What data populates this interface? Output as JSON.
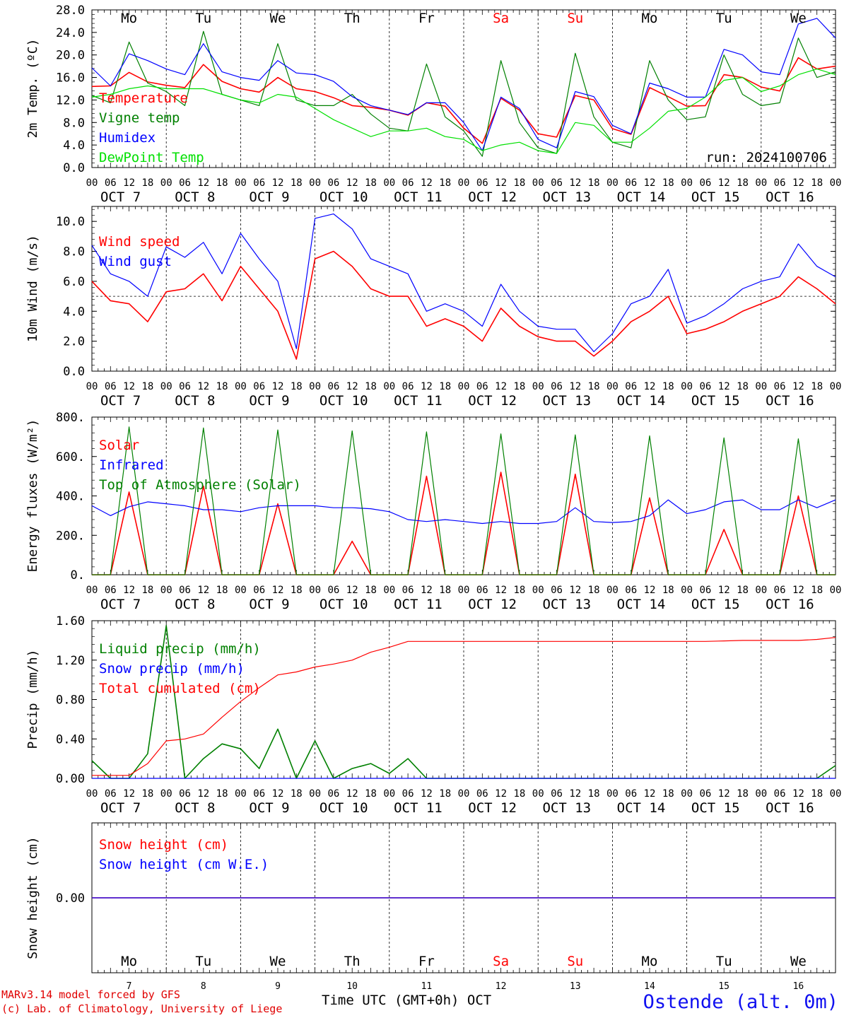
{
  "chart_data": [
    {
      "type": "line",
      "id": "temp",
      "ylabel": "2m Temp. (ºC)",
      "ylim": [
        0,
        28
      ],
      "yticks": [
        "0.0",
        "4.0",
        "8.0",
        "12.0",
        "16.0",
        "20.0",
        "24.0",
        "28.0"
      ],
      "top_day_labels": [
        "Mo",
        "Tu",
        "We",
        "Th",
        "Fr",
        "Sa",
        "Su",
        "Mo",
        "Tu",
        "We"
      ],
      "run_label": "run: 2024100706",
      "x_hours": [
        0,
        6,
        12,
        18,
        24,
        30,
        36,
        42,
        48,
        54,
        60,
        66,
        72,
        78,
        84,
        90,
        96,
        102,
        108,
        114,
        120,
        126,
        132,
        138,
        144,
        150,
        156,
        162,
        168,
        174,
        180,
        186,
        192,
        198,
        204,
        210,
        216,
        222,
        228,
        234,
        240
      ],
      "series": [
        {
          "name": "Temperature",
          "color": "#ff0000",
          "values": [
            14.4,
            14.5,
            16.9,
            15.2,
            14.6,
            14.2,
            18.3,
            15.3,
            14.0,
            13.4,
            16.0,
            14.0,
            13.5,
            12.4,
            11.0,
            10.7,
            10.2,
            9.3,
            11.5,
            10.9,
            7.0,
            4.3,
            12.3,
            10.2,
            6.0,
            5.4,
            12.8,
            12.0,
            6.9,
            5.9,
            14.2,
            12.6,
            10.9,
            11.0,
            16.5,
            16.0,
            14.3,
            13.6,
            19.5,
            17.5,
            18.0
          ]
        },
        {
          "name": "Vigne temp",
          "color": "#008000",
          "values": [
            12.8,
            11.5,
            22.3,
            15.0,
            13.5,
            11.0,
            24.2,
            13.0,
            12.0,
            11.0,
            22.0,
            12.0,
            11.0,
            11.0,
            13.0,
            9.5,
            7.0,
            6.5,
            18.4,
            9.0,
            6.5,
            2.0,
            19.0,
            8.0,
            3.5,
            2.5,
            20.3,
            9.0,
            4.5,
            3.5,
            19.0,
            12.0,
            8.5,
            9.0,
            20.0,
            13.0,
            11.0,
            11.5,
            23.0,
            16.0,
            17.0
          ]
        },
        {
          "name": "Humidex",
          "color": "#0000ff",
          "values": [
            17.7,
            14.5,
            20.2,
            19.0,
            17.5,
            16.5,
            22.0,
            17.0,
            16.0,
            15.5,
            19.0,
            16.8,
            16.5,
            15.3,
            12.6,
            11.0,
            10.2,
            9.4,
            11.5,
            11.5,
            8.0,
            3.0,
            12.5,
            10.5,
            5.0,
            3.5,
            13.5,
            12.6,
            7.5,
            6.0,
            15.0,
            14.0,
            12.5,
            12.5,
            21.0,
            20.0,
            17.0,
            16.5,
            25.5,
            26.5,
            23.0
          ]
        },
        {
          "name": "DewPoint Temp",
          "color": "#00e000",
          "values": [
            12.5,
            13.0,
            14.0,
            14.5,
            14.0,
            14.0,
            14.0,
            13.0,
            12.0,
            11.5,
            13.0,
            12.5,
            10.5,
            8.5,
            7.0,
            5.5,
            6.5,
            6.5,
            7.0,
            5.5,
            5.0,
            3.0,
            4.0,
            4.5,
            3.0,
            2.5,
            8.0,
            7.5,
            4.5,
            4.5,
            7.0,
            10.0,
            10.5,
            12.5,
            15.5,
            16.0,
            13.5,
            14.5,
            16.5,
            17.5,
            16.5
          ]
        }
      ]
    },
    {
      "type": "line",
      "id": "wind",
      "ylabel": "10m Wind (m/s)",
      "ylim": [
        0,
        11
      ],
      "yticks": [
        "0.0",
        "2.0",
        "4.0",
        "6.0",
        "8.0",
        "10.0"
      ],
      "reference_line": 5,
      "x_hours": [
        0,
        6,
        12,
        18,
        24,
        30,
        36,
        42,
        48,
        54,
        60,
        66,
        72,
        78,
        84,
        90,
        96,
        102,
        108,
        114,
        120,
        126,
        132,
        138,
        144,
        150,
        156,
        162,
        168,
        174,
        180,
        186,
        192,
        198,
        204,
        210,
        216,
        222,
        228,
        234,
        240
      ],
      "series": [
        {
          "name": "Wind speed",
          "color": "#ff0000",
          "values": [
            6.0,
            4.7,
            4.5,
            3.3,
            5.3,
            5.5,
            6.5,
            4.7,
            7.0,
            5.5,
            4.0,
            0.8,
            7.5,
            8.0,
            7.0,
            5.5,
            5.0,
            5.0,
            3.0,
            3.5,
            3.0,
            2.0,
            4.2,
            3.0,
            2.3,
            2.0,
            2.0,
            1.0,
            2.0,
            3.3,
            4.0,
            5.0,
            2.5,
            2.8,
            3.3,
            4.0,
            4.5,
            5.0,
            6.3,
            5.5,
            4.5
          ]
        },
        {
          "name": "Wind gust",
          "color": "#0000ff",
          "values": [
            8.4,
            6.5,
            6.0,
            5.0,
            8.3,
            7.6,
            8.6,
            6.5,
            9.2,
            7.5,
            6.0,
            1.5,
            10.2,
            10.5,
            9.5,
            7.5,
            7.0,
            6.5,
            4.0,
            4.5,
            4.0,
            3.0,
            5.8,
            4.0,
            3.0,
            2.8,
            2.8,
            1.3,
            2.5,
            4.5,
            5.0,
            6.8,
            3.2,
            3.7,
            4.5,
            5.5,
            6.0,
            6.3,
            8.5,
            7.0,
            6.3
          ]
        }
      ]
    },
    {
      "type": "line",
      "id": "energy",
      "ylabel": "Energy fluxes (W/m²)",
      "ylim": [
        0,
        800
      ],
      "yticks": [
        "0.",
        "200.",
        "400.",
        "600.",
        "800."
      ],
      "x_hours": [
        0,
        6,
        12,
        18,
        24,
        30,
        36,
        42,
        48,
        54,
        60,
        66,
        72,
        78,
        84,
        90,
        96,
        102,
        108,
        114,
        120,
        126,
        132,
        138,
        144,
        150,
        156,
        162,
        168,
        174,
        180,
        186,
        192,
        198,
        204,
        210,
        216,
        222,
        228,
        234,
        240
      ],
      "series": [
        {
          "name": "Solar",
          "color": "#ff0000",
          "values": [
            0,
            0,
            420,
            0,
            0,
            0,
            450,
            0,
            0,
            0,
            360,
            0,
            0,
            0,
            170,
            0,
            0,
            0,
            500,
            0,
            0,
            0,
            520,
            0,
            0,
            0,
            510,
            0,
            0,
            0,
            390,
            0,
            0,
            0,
            230,
            0,
            0,
            0,
            400,
            0,
            0
          ]
        },
        {
          "name": "Infrared",
          "color": "#0000ff",
          "values": [
            350,
            300,
            345,
            370,
            360,
            350,
            330,
            330,
            320,
            340,
            350,
            350,
            350,
            340,
            340,
            335,
            320,
            280,
            270,
            280,
            270,
            260,
            270,
            260,
            260,
            270,
            340,
            270,
            265,
            270,
            300,
            380,
            310,
            330,
            370,
            380,
            330,
            330,
            380,
            340,
            380
          ]
        },
        {
          "name": "Top of Atmosphere (Solar)",
          "color": "#008000",
          "values": [
            0,
            0,
            750,
            0,
            0,
            0,
            745,
            0,
            0,
            0,
            735,
            0,
            0,
            0,
            730,
            0,
            0,
            0,
            725,
            0,
            0,
            0,
            715,
            0,
            0,
            0,
            710,
            0,
            0,
            0,
            705,
            0,
            0,
            0,
            695,
            0,
            0,
            0,
            690,
            0,
            0
          ]
        }
      ]
    },
    {
      "type": "line",
      "id": "precip",
      "ylabel": "Precip (mm/h)",
      "ylim": [
        0,
        1.6
      ],
      "yticks": [
        "0.00",
        "0.40",
        "0.80",
        "1.20",
        "1.60"
      ],
      "x_hours": [
        0,
        6,
        12,
        18,
        24,
        30,
        36,
        42,
        48,
        54,
        60,
        66,
        72,
        78,
        84,
        90,
        96,
        102,
        108,
        114,
        120,
        126,
        132,
        138,
        144,
        150,
        156,
        162,
        168,
        174,
        180,
        186,
        192,
        198,
        204,
        210,
        216,
        222,
        228,
        234,
        240
      ],
      "series": [
        {
          "name": "Liquid precip (mm/h)",
          "color": "#008000",
          "values": [
            0.18,
            0,
            0,
            0.25,
            1.55,
            0,
            0.2,
            0.35,
            0.3,
            0.1,
            0.5,
            0,
            0.38,
            0,
            0.1,
            0.15,
            0.05,
            0.2,
            0,
            0,
            0,
            0,
            0,
            0,
            0,
            0,
            0,
            0,
            0,
            0,
            0,
            0,
            0,
            0,
            0,
            0,
            0,
            0,
            0,
            0,
            0.13
          ]
        },
        {
          "name": "Snow precip (mm/h)",
          "color": "#0000ff",
          "values": [
            0,
            0,
            0,
            0,
            0,
            0,
            0,
            0,
            0,
            0,
            0,
            0,
            0,
            0,
            0,
            0,
            0,
            0,
            0,
            0,
            0,
            0,
            0,
            0,
            0,
            0,
            0,
            0,
            0,
            0,
            0,
            0,
            0,
            0,
            0,
            0,
            0,
            0,
            0,
            0,
            0
          ]
        },
        {
          "name": "Total cumulated (cm)",
          "color": "#ff0000",
          "values": [
            0.03,
            0.03,
            0.03,
            0.15,
            0.38,
            0.4,
            0.45,
            0.62,
            0.78,
            0.92,
            1.05,
            1.08,
            1.13,
            1.16,
            1.2,
            1.28,
            1.33,
            1.39,
            1.39,
            1.39,
            1.39,
            1.39,
            1.39,
            1.39,
            1.39,
            1.39,
            1.39,
            1.39,
            1.39,
            1.39,
            1.39,
            1.39,
            1.39,
            1.39,
            1.395,
            1.4,
            1.4,
            1.4,
            1.4,
            1.41,
            1.43
          ]
        }
      ]
    },
    {
      "type": "line",
      "id": "snow",
      "ylabel": "Snow height (cm)",
      "ylim": [
        -1,
        1
      ],
      "yticks": [
        "0.00"
      ],
      "bottom_day_labels": [
        "Mo",
        "Tu",
        "We",
        "Th",
        "Fr",
        "Sa",
        "Su",
        "Mo",
        "Tu",
        "We"
      ],
      "bottom_day_numbers": [
        "7",
        "8",
        "9",
        "10",
        "11",
        "12",
        "13",
        "14",
        "15",
        "16"
      ],
      "x_hours": [
        0,
        240
      ],
      "series": [
        {
          "name": "Snow height (cm)",
          "color": "#ff0000",
          "values": [
            0,
            0
          ]
        },
        {
          "name": "Snow height (cm W.E.)",
          "color": "#0000ff",
          "values": [
            0,
            0
          ]
        }
      ]
    }
  ],
  "axis": {
    "hour_ticks": [
      "00",
      "06",
      "12",
      "18"
    ],
    "dates": [
      "OCT  7",
      "OCT  8",
      "OCT  9",
      "OCT 10",
      "OCT 11",
      "OCT 12",
      "OCT 13",
      "OCT 14",
      "OCT 15",
      "OCT 16"
    ],
    "final_hour": "00",
    "weekend_color": "#ff0000",
    "weekend_indices": [
      5,
      6
    ]
  },
  "footer": {
    "credit1": "MARv3.14 model forced by GFS",
    "credit2": "(c) Lab. of Climatology, University of Liege",
    "xlabel": "Time UTC (GMT+0h) OCT",
    "station": "Ostende (alt. 0m)"
  }
}
